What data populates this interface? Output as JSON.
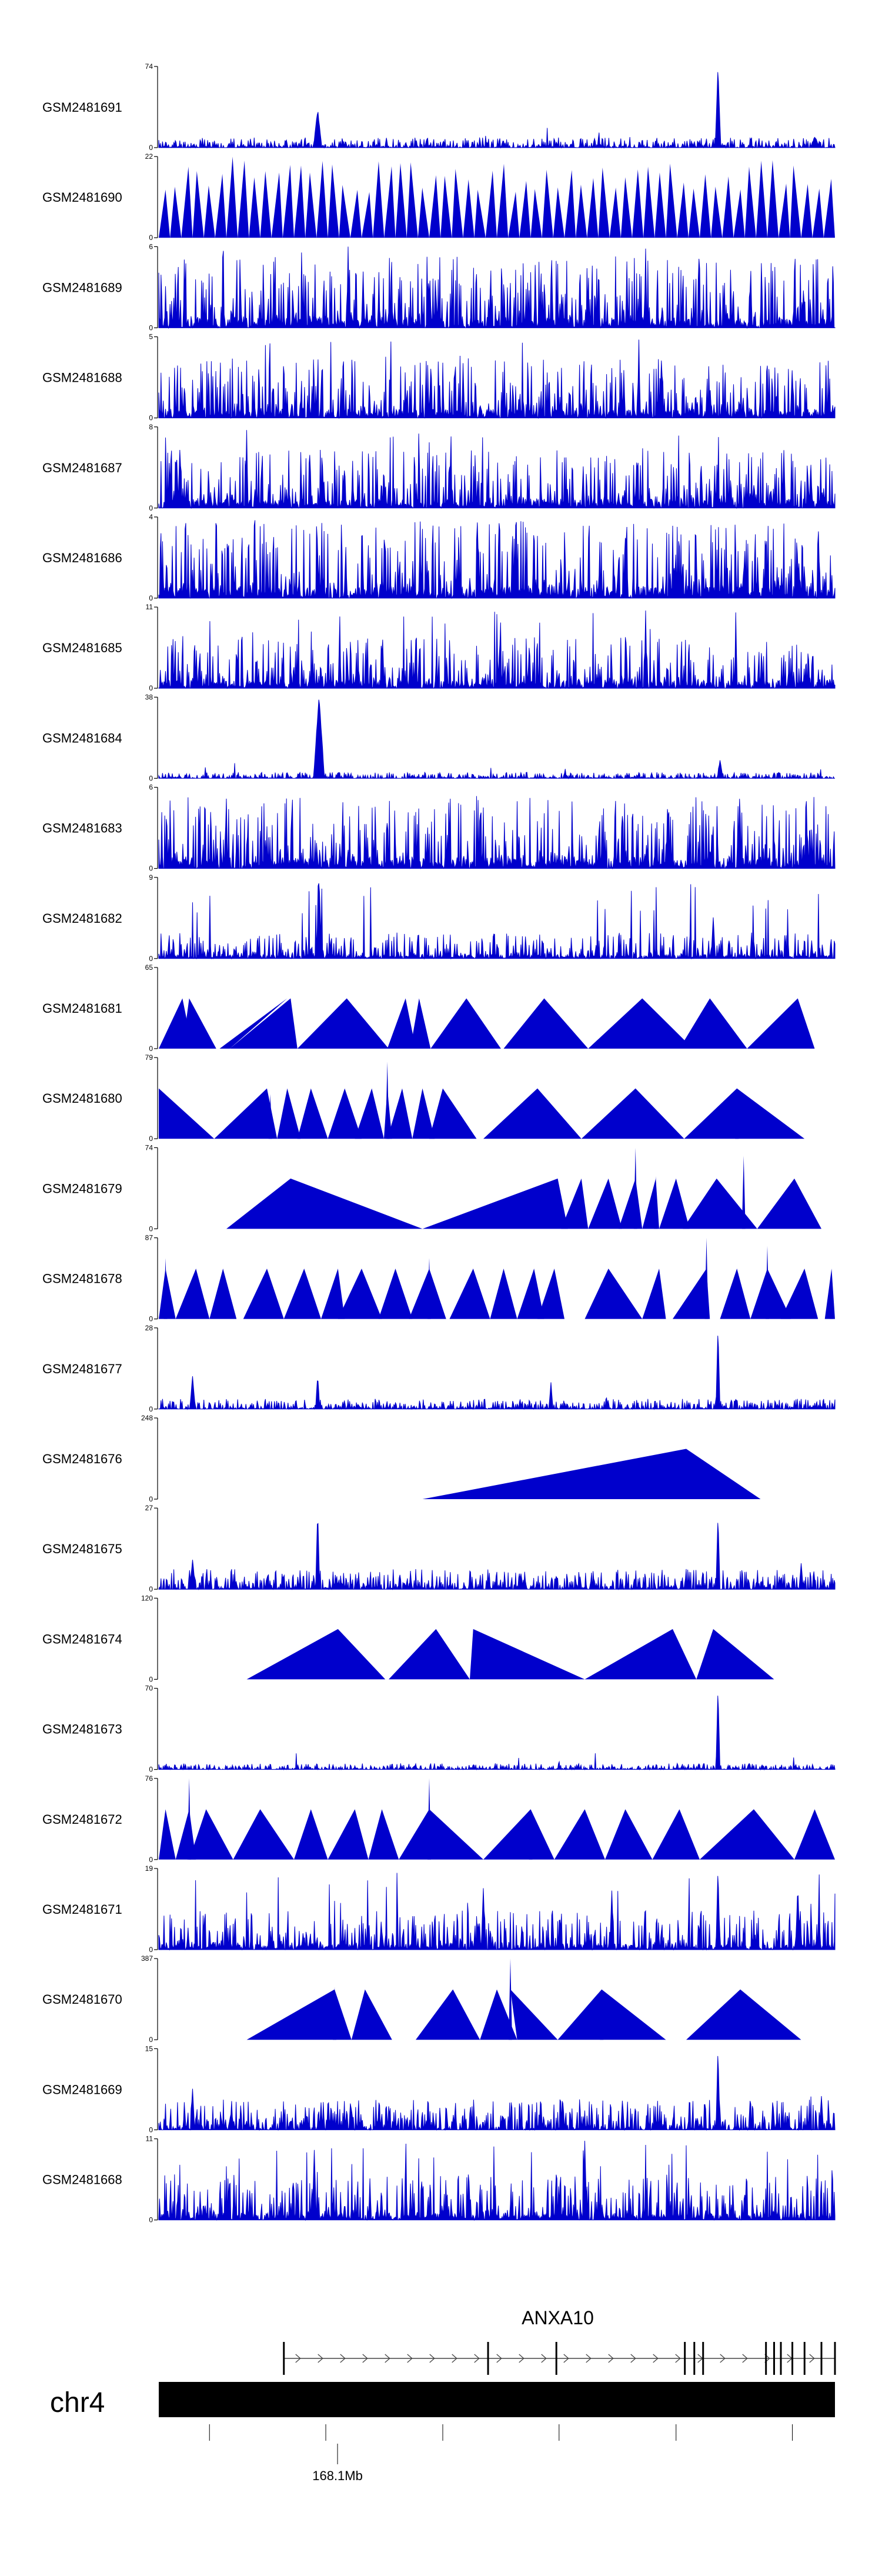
{
  "chart_data": {
    "type": "area",
    "title": "",
    "chromosome": "chr4",
    "tracks": [
      {
        "name": "GSM2481691",
        "ymax": "74",
        "ymin": "0",
        "style": "dense",
        "peaks": [
          [
            0.235,
            0.45,
            0.006
          ],
          [
            0.827,
            1.0,
            0.004
          ],
          [
            0.97,
            0.12,
            0.006
          ]
        ],
        "base": 0.05,
        "seed": 11
      },
      {
        "name": "GSM2481690",
        "ymax": "22",
        "ymin": "0",
        "style": "triangles",
        "span": [
          0.0,
          1.0
        ],
        "tri": 60,
        "seed": 12
      },
      {
        "name": "GSM2481689",
        "ymax": "6",
        "ymin": "0",
        "style": "spiky",
        "base": 0.55,
        "seed": 13,
        "peaks": [
          [
            0.28,
            1.0,
            0.002
          ],
          [
            0.72,
            0.95,
            0.002
          ]
        ]
      },
      {
        "name": "GSM2481688",
        "ymax": "5",
        "ymin": "0",
        "style": "spiky",
        "base": 0.45,
        "seed": 14,
        "peaks": [
          [
            0.71,
            0.95,
            0.002
          ]
        ]
      },
      {
        "name": "GSM2481687",
        "ymax": "8",
        "ymin": "0",
        "style": "spiky",
        "base": 0.45,
        "seed": 15,
        "peaks": [
          [
            0.13,
            0.95,
            0.002
          ]
        ]
      },
      {
        "name": "GSM2481686",
        "ymax": "4",
        "ymin": "0",
        "style": "spiky",
        "base": 0.6,
        "seed": 16,
        "peaks": []
      },
      {
        "name": "GSM2481685",
        "ymax": "11",
        "ymin": "0",
        "style": "spiky",
        "base": 0.4,
        "seed": 17,
        "peaks": [
          [
            0.72,
            0.95,
            0.002
          ]
        ]
      },
      {
        "name": "GSM2481684",
        "ymax": "38",
        "ymin": "0",
        "style": "dense",
        "peaks": [
          [
            0.237,
            1.0,
            0.008
          ],
          [
            0.83,
            0.22,
            0.004
          ]
        ],
        "base": 0.03,
        "seed": 18
      },
      {
        "name": "GSM2481683",
        "ymax": "6",
        "ymin": "0",
        "style": "spiky",
        "base": 0.55,
        "seed": 19,
        "peaks": []
      },
      {
        "name": "GSM2481682",
        "ymax": "9",
        "ymin": "0",
        "style": "spiky",
        "base": 0.2,
        "seed": 20,
        "peaks": [
          [
            0.237,
            1.0,
            0.004
          ],
          [
            0.82,
            0.5,
            0.003
          ]
        ]
      },
      {
        "name": "GSM2481681",
        "ymax": "65",
        "ymin": "0",
        "style": "triangles_list",
        "tris": [
          [
            0.0,
            0.035,
            0.05
          ],
          [
            0.035,
            0.045,
            0.085
          ],
          [
            0.09,
            0.19,
            0.105
          ],
          [
            0.105,
            0.195,
            0.205
          ],
          [
            0.205,
            0.278,
            0.34
          ],
          [
            0.338,
            0.365,
            0.38
          ],
          [
            0.372,
            0.385,
            0.402
          ],
          [
            0.402,
            0.455,
            0.506
          ],
          [
            0.51,
            0.57,
            0.635
          ],
          [
            0.635,
            0.715,
            0.79
          ],
          [
            0.77,
            0.815,
            0.87
          ],
          [
            0.87,
            0.945,
            0.97
          ]
        ]
      },
      {
        "name": "GSM2481680",
        "ymax": "79",
        "ymin": "0",
        "style": "triangles_list",
        "tris": [
          [
            0.0,
            0.0,
            0.082
          ],
          [
            0.082,
            0.16,
            0.175
          ],
          [
            0.175,
            0.19,
            0.21
          ],
          [
            0.205,
            0.225,
            0.25
          ],
          [
            0.25,
            0.275,
            0.3
          ],
          [
            0.29,
            0.315,
            0.333
          ],
          [
            0.333,
            0.338,
            0.345
          ],
          [
            0.338,
            0.36,
            0.375
          ],
          [
            0.375,
            0.39,
            0.408
          ],
          [
            0.4,
            0.42,
            0.47
          ],
          [
            0.48,
            0.56,
            0.625
          ],
          [
            0.625,
            0.705,
            0.777
          ],
          [
            0.777,
            0.855,
            0.955
          ]
        ],
        "peaks_tri": [
          [
            0.338,
            0.95
          ],
          [
            0.165,
            0.55
          ],
          [
            0.855,
            0.55
          ]
        ]
      },
      {
        "name": "GSM2481679",
        "ymax": "74",
        "ymin": "0",
        "style": "triangles_list",
        "tris": [
          [
            0.1,
            0.195,
            0.39
          ],
          [
            0.39,
            0.59,
            0.605
          ],
          [
            0.595,
            0.625,
            0.635
          ],
          [
            0.635,
            0.665,
            0.685
          ],
          [
            0.68,
            0.705,
            0.715
          ],
          [
            0.715,
            0.735,
            0.74
          ],
          [
            0.74,
            0.765,
            0.785
          ],
          [
            0.775,
            0.825,
            0.885
          ],
          [
            0.885,
            0.94,
            0.98
          ]
        ],
        "peaks_tri": [
          [
            0.705,
            1.0
          ],
          [
            0.735,
            0.65
          ],
          [
            0.865,
            0.9
          ]
        ]
      },
      {
        "name": "GSM2481678",
        "ymax": "87",
        "ymin": "0",
        "style": "triangles_list",
        "tris": [
          [
            0.0,
            0.01,
            0.025
          ],
          [
            0.025,
            0.055,
            0.075
          ],
          [
            0.075,
            0.095,
            0.115
          ],
          [
            0.125,
            0.16,
            0.185
          ],
          [
            0.185,
            0.215,
            0.24
          ],
          [
            0.24,
            0.265,
            0.275
          ],
          [
            0.265,
            0.3,
            0.33
          ],
          [
            0.325,
            0.35,
            0.375
          ],
          [
            0.37,
            0.4,
            0.425
          ],
          [
            0.43,
            0.465,
            0.49
          ],
          [
            0.49,
            0.51,
            0.53
          ],
          [
            0.53,
            0.555,
            0.57
          ],
          [
            0.56,
            0.585,
            0.6
          ],
          [
            0.63,
            0.665,
            0.715
          ],
          [
            0.715,
            0.74,
            0.75
          ],
          [
            0.76,
            0.81,
            0.815
          ],
          [
            0.83,
            0.855,
            0.875
          ],
          [
            0.875,
            0.9,
            0.935
          ],
          [
            0.92,
            0.955,
            0.975
          ],
          [
            0.985,
            0.995,
            1.0
          ]
        ],
        "peaks_tri": [
          [
            0.81,
            1.0
          ],
          [
            0.4,
            0.75
          ],
          [
            0.9,
            0.9
          ],
          [
            0.995,
            0.6
          ],
          [
            0.01,
            0.75
          ]
        ]
      },
      {
        "name": "GSM2481677",
        "ymax": "28",
        "ymin": "0",
        "style": "dense",
        "peaks": [
          [
            0.827,
            1.0,
            0.003
          ],
          [
            0.05,
            0.38,
            0.004
          ],
          [
            0.235,
            0.4,
            0.003
          ],
          [
            0.58,
            0.3,
            0.003
          ]
        ],
        "base": 0.05,
        "seed": 21
      },
      {
        "name": "GSM2481676",
        "ymax": "248",
        "ymin": "0",
        "style": "triangles_list",
        "tris": [
          [
            0.39,
            0.78,
            0.89
          ]
        ]
      },
      {
        "name": "GSM2481675",
        "ymax": "27",
        "ymin": "0",
        "style": "dense",
        "peaks": [
          [
            0.235,
            0.98,
            0.003
          ],
          [
            0.827,
            0.9,
            0.003
          ],
          [
            0.05,
            0.35,
            0.004
          ],
          [
            0.95,
            0.3,
            0.003
          ]
        ],
        "base": 0.1,
        "seed": 22
      },
      {
        "name": "GSM2481674",
        "ymax": "120",
        "ymin": "0",
        "style": "triangles_list",
        "tris": [
          [
            0.13,
            0.265,
            0.335
          ],
          [
            0.34,
            0.41,
            0.46
          ],
          [
            0.46,
            0.465,
            0.63
          ],
          [
            0.63,
            0.76,
            0.795
          ],
          [
            0.795,
            0.82,
            0.91
          ]
        ]
      },
      {
        "name": "GSM2481673",
        "ymax": "70",
        "ymin": "0",
        "style": "dense",
        "peaks": [
          [
            0.827,
            1.0,
            0.003
          ]
        ],
        "base": 0.03,
        "seed": 23
      },
      {
        "name": "GSM2481672",
        "ymax": "76",
        "ymin": "0",
        "style": "triangles_list",
        "tris": [
          [
            0.0,
            0.01,
            0.025
          ],
          [
            0.025,
            0.045,
            0.055
          ],
          [
            0.045,
            0.07,
            0.11
          ],
          [
            0.11,
            0.15,
            0.2
          ],
          [
            0.2,
            0.225,
            0.25
          ],
          [
            0.25,
            0.29,
            0.31
          ],
          [
            0.31,
            0.33,
            0.355
          ],
          [
            0.355,
            0.4,
            0.48
          ],
          [
            0.48,
            0.55,
            0.585
          ],
          [
            0.585,
            0.63,
            0.66
          ],
          [
            0.66,
            0.69,
            0.73
          ],
          [
            0.73,
            0.77,
            0.8
          ],
          [
            0.8,
            0.88,
            0.94
          ],
          [
            0.94,
            0.97,
            1.0
          ]
        ],
        "peaks_tri": [
          [
            0.045,
            1.0
          ],
          [
            0.4,
            1.0
          ],
          [
            0.55,
            0.45
          ]
        ]
      },
      {
        "name": "GSM2481671",
        "ymax": "19",
        "ymin": "0",
        "style": "spiky",
        "base": 0.3,
        "seed": 24,
        "peaks": [
          [
            0.827,
            1.0,
            0.003
          ],
          [
            0.48,
            0.75,
            0.003
          ],
          [
            0.945,
            0.8,
            0.003
          ],
          [
            0.67,
            0.7,
            0.003
          ]
        ]
      },
      {
        "name": "GSM2481670",
        "ymax": "387",
        "ymin": "0",
        "style": "triangles_list",
        "tris": [
          [
            0.13,
            0.26,
            0.285
          ],
          [
            0.285,
            0.305,
            0.345
          ],
          [
            0.38,
            0.435,
            0.475
          ],
          [
            0.475,
            0.5,
            0.53
          ],
          [
            0.53,
            0.52,
            0.59
          ],
          [
            0.59,
            0.655,
            0.75
          ],
          [
            0.78,
            0.86,
            0.95
          ]
        ],
        "peaks_tri": [
          [
            0.26,
            0.65
          ],
          [
            0.52,
            1.0
          ],
          [
            0.655,
            0.5
          ]
        ]
      },
      {
        "name": "GSM2481669",
        "ymax": "15",
        "ymin": "0",
        "style": "dense",
        "peaks": [
          [
            0.827,
            1.0,
            0.003
          ],
          [
            0.05,
            0.5,
            0.003
          ],
          [
            0.98,
            0.4,
            0.003
          ]
        ],
        "base": 0.15,
        "seed": 25
      },
      {
        "name": "GSM2481668",
        "ymax": "11",
        "ymin": "0",
        "style": "spiky",
        "base": 0.35,
        "seed": 26,
        "peaks": [
          [
            0.23,
            0.85,
            0.003
          ],
          [
            0.63,
            0.95,
            0.003
          ]
        ]
      }
    ],
    "gene": {
      "name": "ANXA10",
      "strand": "+",
      "start": 0.185,
      "end": 1.0,
      "exons": [
        0.185,
        0.487,
        0.588,
        0.778,
        0.792,
        0.805,
        0.898,
        0.91,
        0.92,
        0.937,
        0.955,
        0.98,
        1.0
      ]
    },
    "axis": {
      "tick_label": "168.1Mb",
      "label_tick_index": 1,
      "ticks": [
        0.075,
        0.247,
        0.42,
        0.592,
        0.765,
        0.937
      ]
    },
    "colors": {
      "signal": "#0000cc",
      "axis": "#000000",
      "ideogram": "#000000"
    }
  }
}
